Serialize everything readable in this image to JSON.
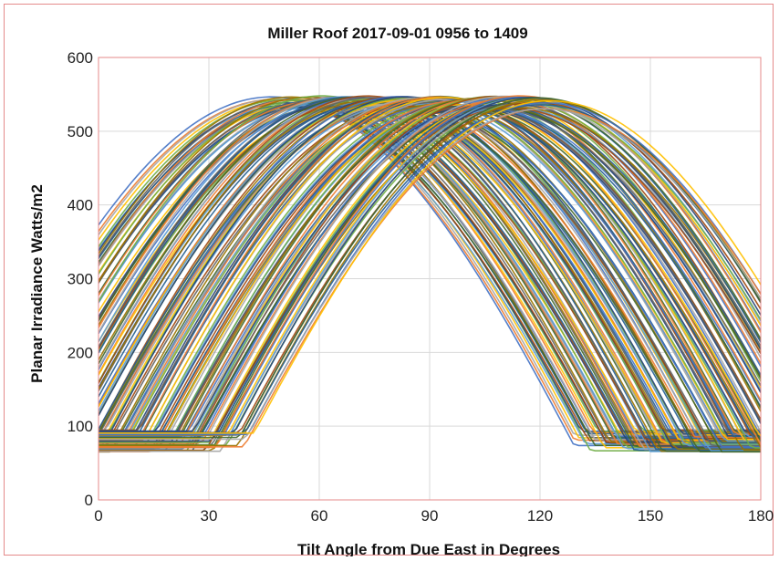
{
  "chart_data": {
    "type": "line",
    "title": "Miller Roof 2017-09-01 0956 to 1409",
    "xlabel": "Tilt Angle from Due East in Degrees",
    "ylabel": "Planar Irradiance Watts/m2",
    "xlim": [
      0,
      180
    ],
    "ylim": [
      0,
      600
    ],
    "xticks": [
      0,
      30,
      60,
      90,
      120,
      150,
      180
    ],
    "yticks": [
      0,
      100,
      200,
      300,
      400,
      500,
      600
    ],
    "grid": true,
    "legend": "none",
    "series_model": {
      "description_of_family": "many overlapping measurement curves, each a clipped sine-shaped irradiance profile",
      "peak_angle_range": [
        48,
        122
      ],
      "peak_value_range": [
        530,
        548
      ],
      "floor_value_range": [
        65,
        95
      ],
      "count_estimate": 160
    },
    "colors": [
      "#4472c4",
      "#ed7d31",
      "#a5a5a5",
      "#ffc000",
      "#5b9bd5",
      "#70ad47",
      "#264478",
      "#9e480e",
      "#636363",
      "#997300",
      "#255e91",
      "#43682b"
    ]
  }
}
